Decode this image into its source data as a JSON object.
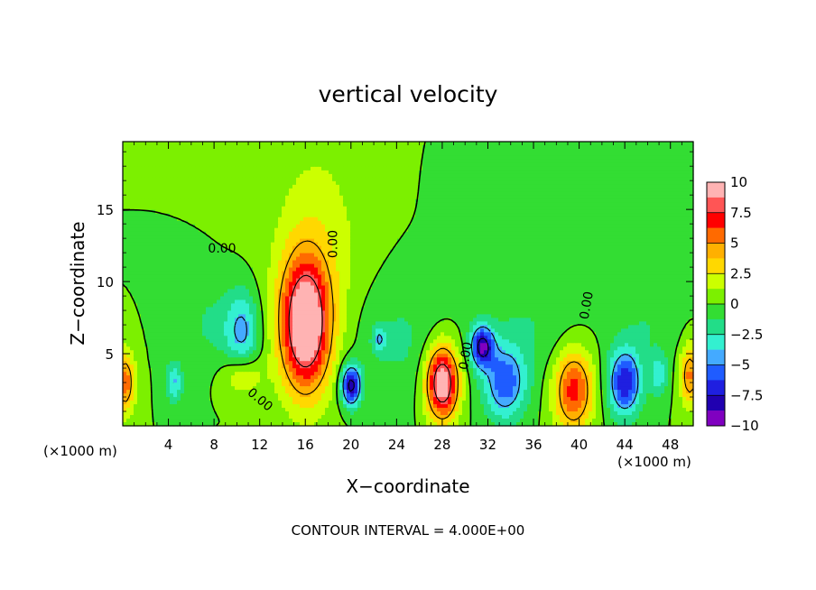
{
  "chart_data": {
    "type": "heatmap",
    "title": "vertical velocity",
    "xlabel": "X−coordinate",
    "ylabel": "Z−coordinate",
    "x_unit_left": "(×1000 m)",
    "x_unit_right": "(×1000 m)",
    "footer": "CONTOUR INTERVAL = 4.000E+00",
    "xlim": [
      0,
      50
    ],
    "ylim": [
      0,
      19.7
    ],
    "x_ticks": [
      4,
      8,
      12,
      16,
      20,
      24,
      28,
      32,
      36,
      40,
      44,
      48
    ],
    "x_tick_labels": [
      "4",
      "8",
      "12",
      "16",
      "20",
      "24",
      "28",
      "32",
      "36",
      "40",
      "44",
      "48"
    ],
    "y_ticks": [
      5,
      10,
      15
    ],
    "y_tick_labels": [
      "5",
      "10",
      "15"
    ],
    "colorbar": {
      "min": -10,
      "max": 10,
      "ticks": [
        10,
        7.5,
        5,
        2.5,
        0,
        -2.5,
        -5,
        -7.5,
        -10
      ],
      "labels": [
        "10",
        "7.5",
        "5",
        "2.5",
        "0",
        "−2.5",
        "−5",
        "−7.5",
        "−10"
      ],
      "colors": [
        "#ffb3b3",
        "#ff5555",
        "#ff0000",
        "#ff6a00",
        "#ffb000",
        "#ffd800",
        "#ccff00",
        "#7cf000",
        "#33dd33",
        "#22dd88",
        "#33f0d0",
        "#44aaff",
        "#1f5cff",
        "#1f1fe0",
        "#2000b0",
        "#8000c0"
      ]
    },
    "contour_labels": [
      {
        "text": "0.00",
        "x": 8.7,
        "y": 12.0
      },
      {
        "text": "0.00",
        "x": 18.8,
        "y": 12.6
      },
      {
        "text": "0.00",
        "x": 11.8,
        "y": 1.6
      },
      {
        "text": "0.00",
        "x": 30.4,
        "y": 4.8
      },
      {
        "text": "0.00",
        "x": 41.0,
        "y": 8.3
      }
    ],
    "features": [
      {
        "x": 16.0,
        "z": 7.0,
        "sx": 1.5,
        "sz": 3.2,
        "amp": 11.0
      },
      {
        "x": 28.0,
        "z": 3.0,
        "sx": 1.0,
        "sz": 1.8,
        "amp": 11.0
      },
      {
        "x": 39.5,
        "z": 2.5,
        "sx": 1.2,
        "sz": 2.0,
        "amp": 7.0
      },
      {
        "x": 0.2,
        "z": 3.0,
        "sx": 0.6,
        "sz": 1.5,
        "amp": 6.0
      },
      {
        "x": 49.7,
        "z": 3.5,
        "sx": 0.6,
        "sz": 1.5,
        "amp": 5.5
      },
      {
        "x": 10.5,
        "z": 3.5,
        "sx": 1.2,
        "sz": 1.0,
        "amp": 3.0
      },
      {
        "x": 20.0,
        "z": 2.8,
        "sx": 0.6,
        "sz": 1.0,
        "amp": -9.0
      },
      {
        "x": 44.0,
        "z": 3.0,
        "sx": 1.0,
        "sz": 1.6,
        "amp": -7.5
      },
      {
        "x": 31.5,
        "z": 5.5,
        "sx": 0.7,
        "sz": 1.0,
        "amp": -8.5
      },
      {
        "x": 33.5,
        "z": 3.0,
        "sx": 1.3,
        "sz": 1.8,
        "amp": -6.0
      },
      {
        "x": 10.5,
        "z": 6.5,
        "sx": 1.0,
        "sz": 2.0,
        "amp": -4.0
      },
      {
        "x": 4.5,
        "z": 3.0,
        "sx": 0.5,
        "sz": 1.0,
        "amp": -4.0
      },
      {
        "x": 47.0,
        "z": 3.5,
        "sx": 0.5,
        "sz": 1.0,
        "amp": -3.5
      },
      {
        "x": 22.5,
        "z": 6.0,
        "sx": 0.4,
        "sz": 0.6,
        "amp": -3.5
      },
      {
        "x": 17.0,
        "z": 12.0,
        "sx": 3.0,
        "sz": 6.0,
        "amp": 2.0
      },
      {
        "x": 24.0,
        "z": 6.0,
        "sx": 3.0,
        "sz": 3.0,
        "amp": -1.5
      },
      {
        "x": 36.0,
        "z": 7.0,
        "sx": 3.0,
        "sz": 2.5,
        "amp": -1.2
      },
      {
        "x": 8.0,
        "z": 7.0,
        "sx": 2.0,
        "sz": 2.0,
        "amp": -1.5
      },
      {
        "x": 46.0,
        "z": 7.0,
        "sx": 2.0,
        "sz": 2.0,
        "amp": -1.2
      },
      {
        "x": 33.0,
        "z": 15.0,
        "sx": 2.5,
        "sz": 2.5,
        "amp": -1.0
      }
    ]
  }
}
